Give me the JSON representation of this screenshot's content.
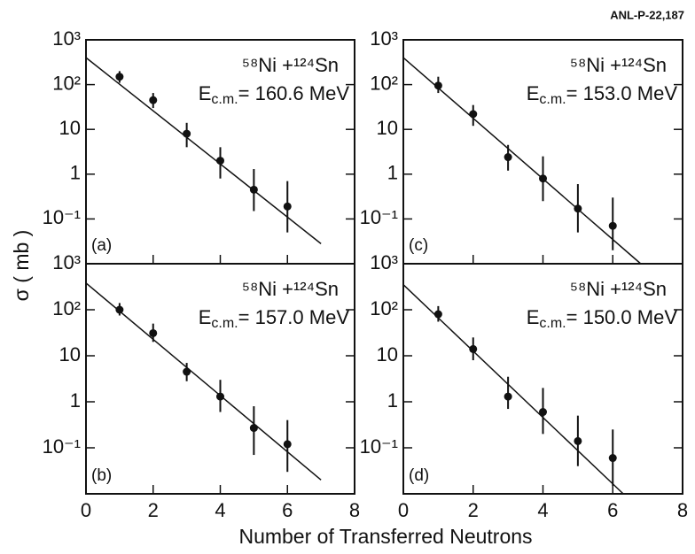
{
  "figure_id": "ANL-P-22,187",
  "x_label": "Number of Transferred Neutrons",
  "y_label": "σ ( mb )",
  "chart_data": [
    {
      "type": "scatter",
      "panel_label": "(a)",
      "reaction": "⁵⁸Ni +¹²⁴Sn",
      "energy_symbol": "E",
      "energy_subscript": "c.m.",
      "energy_text": "= 160.6 MeV",
      "log_y": true,
      "color": "#111111",
      "xlim": [
        0,
        8
      ],
      "xticks": [
        0,
        2,
        4,
        6,
        8
      ],
      "ylim": [
        0.01,
        1000
      ],
      "yticks": [
        {
          "value": 1000,
          "label": "10³"
        },
        {
          "value": 100,
          "label": "10²"
        },
        10,
        1,
        {
          "value": 0.1,
          "label": "10⁻¹"
        }
      ],
      "x": [
        1,
        2,
        3,
        4,
        5,
        6
      ],
      "values": [
        150,
        45,
        8,
        2,
        0.45,
        0.19
      ],
      "errors": [
        [
          110,
          200
        ],
        [
          30,
          65
        ],
        [
          4,
          14
        ],
        [
          0.8,
          4
        ],
        [
          0.15,
          1.3
        ],
        [
          0.05,
          0.7
        ]
      ],
      "fit": {
        "x": [
          0,
          7
        ],
        "values": [
          400,
          0.028
        ]
      }
    },
    {
      "type": "scatter",
      "panel_label": "(b)",
      "reaction": "⁵⁸Ni +¹²⁴Sn",
      "energy_symbol": "E",
      "energy_subscript": "c.m.",
      "energy_text": "= 157.0 MeV",
      "log_y": true,
      "color": "#111111",
      "xlim": [
        0,
        8
      ],
      "xticks": [
        0,
        2,
        4,
        6,
        8
      ],
      "ylim": [
        0.01,
        1000
      ],
      "yticks": [
        {
          "value": 1000,
          "label": "10³"
        },
        {
          "value": 100,
          "label": "10²"
        },
        10,
        1,
        {
          "value": 0.1,
          "label": "10⁻¹"
        }
      ],
      "x": [
        1,
        2,
        3,
        4,
        5,
        6
      ],
      "values": [
        100,
        31,
        4.5,
        1.3,
        0.27,
        0.12
      ],
      "errors": [
        [
          75,
          140
        ],
        [
          20,
          50
        ],
        [
          2.8,
          7
        ],
        [
          0.6,
          3
        ],
        [
          0.07,
          0.8
        ],
        [
          0.03,
          0.4
        ]
      ],
      "fit": {
        "x": [
          0,
          7
        ],
        "values": [
          380,
          0.02
        ]
      }
    },
    {
      "type": "scatter",
      "panel_label": "(c)",
      "reaction": "⁵⁸Ni +¹²⁴Sn",
      "energy_symbol": "E",
      "energy_subscript": "c.m.",
      "energy_text": "= 153.0 MeV",
      "log_y": true,
      "color": "#111111",
      "xlim": [
        0,
        8
      ],
      "xticks": [
        0,
        2,
        4,
        6,
        8
      ],
      "ylim": [
        0.01,
        1000
      ],
      "yticks": [
        {
          "value": 1000,
          "label": "10³"
        },
        {
          "value": 100,
          "label": "10²"
        },
        10,
        1,
        {
          "value": 0.1,
          "label": "10⁻¹"
        }
      ],
      "x": [
        1,
        2,
        3,
        4,
        5,
        6
      ],
      "values": [
        95,
        22,
        2.4,
        0.8,
        0.17,
        0.07
      ],
      "errors": [
        [
          65,
          150
        ],
        [
          12,
          35
        ],
        [
          1.2,
          4.5
        ],
        [
          0.25,
          2.5
        ],
        [
          0.05,
          0.6
        ],
        [
          0.02,
          0.3
        ]
      ],
      "fit": {
        "x": [
          0,
          6.8
        ],
        "values": [
          400,
          0.01
        ]
      }
    },
    {
      "type": "scatter",
      "panel_label": "(d)",
      "reaction": "⁵⁸Ni +¹²⁴Sn",
      "energy_symbol": "E",
      "energy_subscript": "c.m.",
      "energy_text": "= 150.0 MeV",
      "log_y": true,
      "color": "#111111",
      "xlim": [
        0,
        8
      ],
      "xticks": [
        0,
        2,
        4,
        6,
        8
      ],
      "ylim": [
        0.01,
        1000
      ],
      "yticks": [
        {
          "value": 1000,
          "label": "10³"
        },
        {
          "value": 100,
          "label": "10²"
        },
        10,
        1,
        {
          "value": 0.1,
          "label": "10⁻¹"
        }
      ],
      "x": [
        1,
        2,
        3,
        4,
        5,
        6
      ],
      "values": [
        80,
        14,
        1.3,
        0.6,
        0.14,
        0.06
      ],
      "errors": [
        [
          55,
          120
        ],
        [
          8,
          25
        ],
        [
          0.7,
          3.5
        ],
        [
          0.2,
          2
        ],
        [
          0.04,
          0.5
        ],
        [
          0.015,
          0.25
        ]
      ],
      "fit": {
        "x": [
          0,
          6.3
        ],
        "values": [
          350,
          0.01
        ]
      }
    }
  ]
}
